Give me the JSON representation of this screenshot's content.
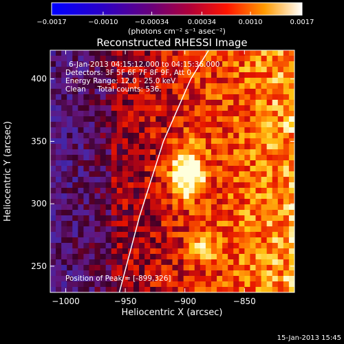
{
  "chart_data": {
    "type": "heatmap",
    "title": "Reconstructed RHESSI Image",
    "xlabel": "Heliocentric X (arcsec)",
    "ylabel": "Heliocentric Y (arcsec)",
    "xlim": [
      -1013,
      -808
    ],
    "ylim": [
      229,
      423
    ],
    "x_ticks": [
      -1000,
      -950,
      -900,
      -850
    ],
    "x_tick_labels": [
      "−1000",
      "−950",
      "−900",
      "−850"
    ],
    "y_ticks": [
      250,
      300,
      350,
      400
    ],
    "y_tick_labels": [
      "250",
      "300",
      "350",
      "400"
    ],
    "colorbar": {
      "min": -0.0017,
      "max": 0.0017,
      "ticks": [
        -0.0017,
        -0.001,
        -0.00034,
        0.00034,
        0.001,
        0.0017
      ],
      "tick_labels": [
        "−0.0017",
        "−0.0010",
        "−0.00034",
        "0.00034",
        "0.0010",
        "0.0017"
      ],
      "unit_label": "(photons cm⁻² s⁻¹ asec⁻²)"
    },
    "annotations": {
      "time_range": "6-Jan-2013 04:15:12.000 to 04:15:36.000",
      "detectors": "Detectors: 3F 5F 6F 7F 8F 9F, Att 0",
      "energy_range": "Energy Range: 12.0 - 25.0 keV",
      "method_counts": "Clean     Total counts: 536.",
      "peak_position": "Position of Peak = [-899,326]"
    },
    "peak": {
      "x": -899,
      "y": 326
    },
    "limb_curve": [
      [
        -955,
        229
      ],
      [
        -938,
        290
      ],
      [
        -918,
        350
      ],
      [
        -895,
        400
      ],
      [
        -880,
        423
      ]
    ],
    "grid": false,
    "footer_date": "15-Jan-2013 15:45"
  }
}
